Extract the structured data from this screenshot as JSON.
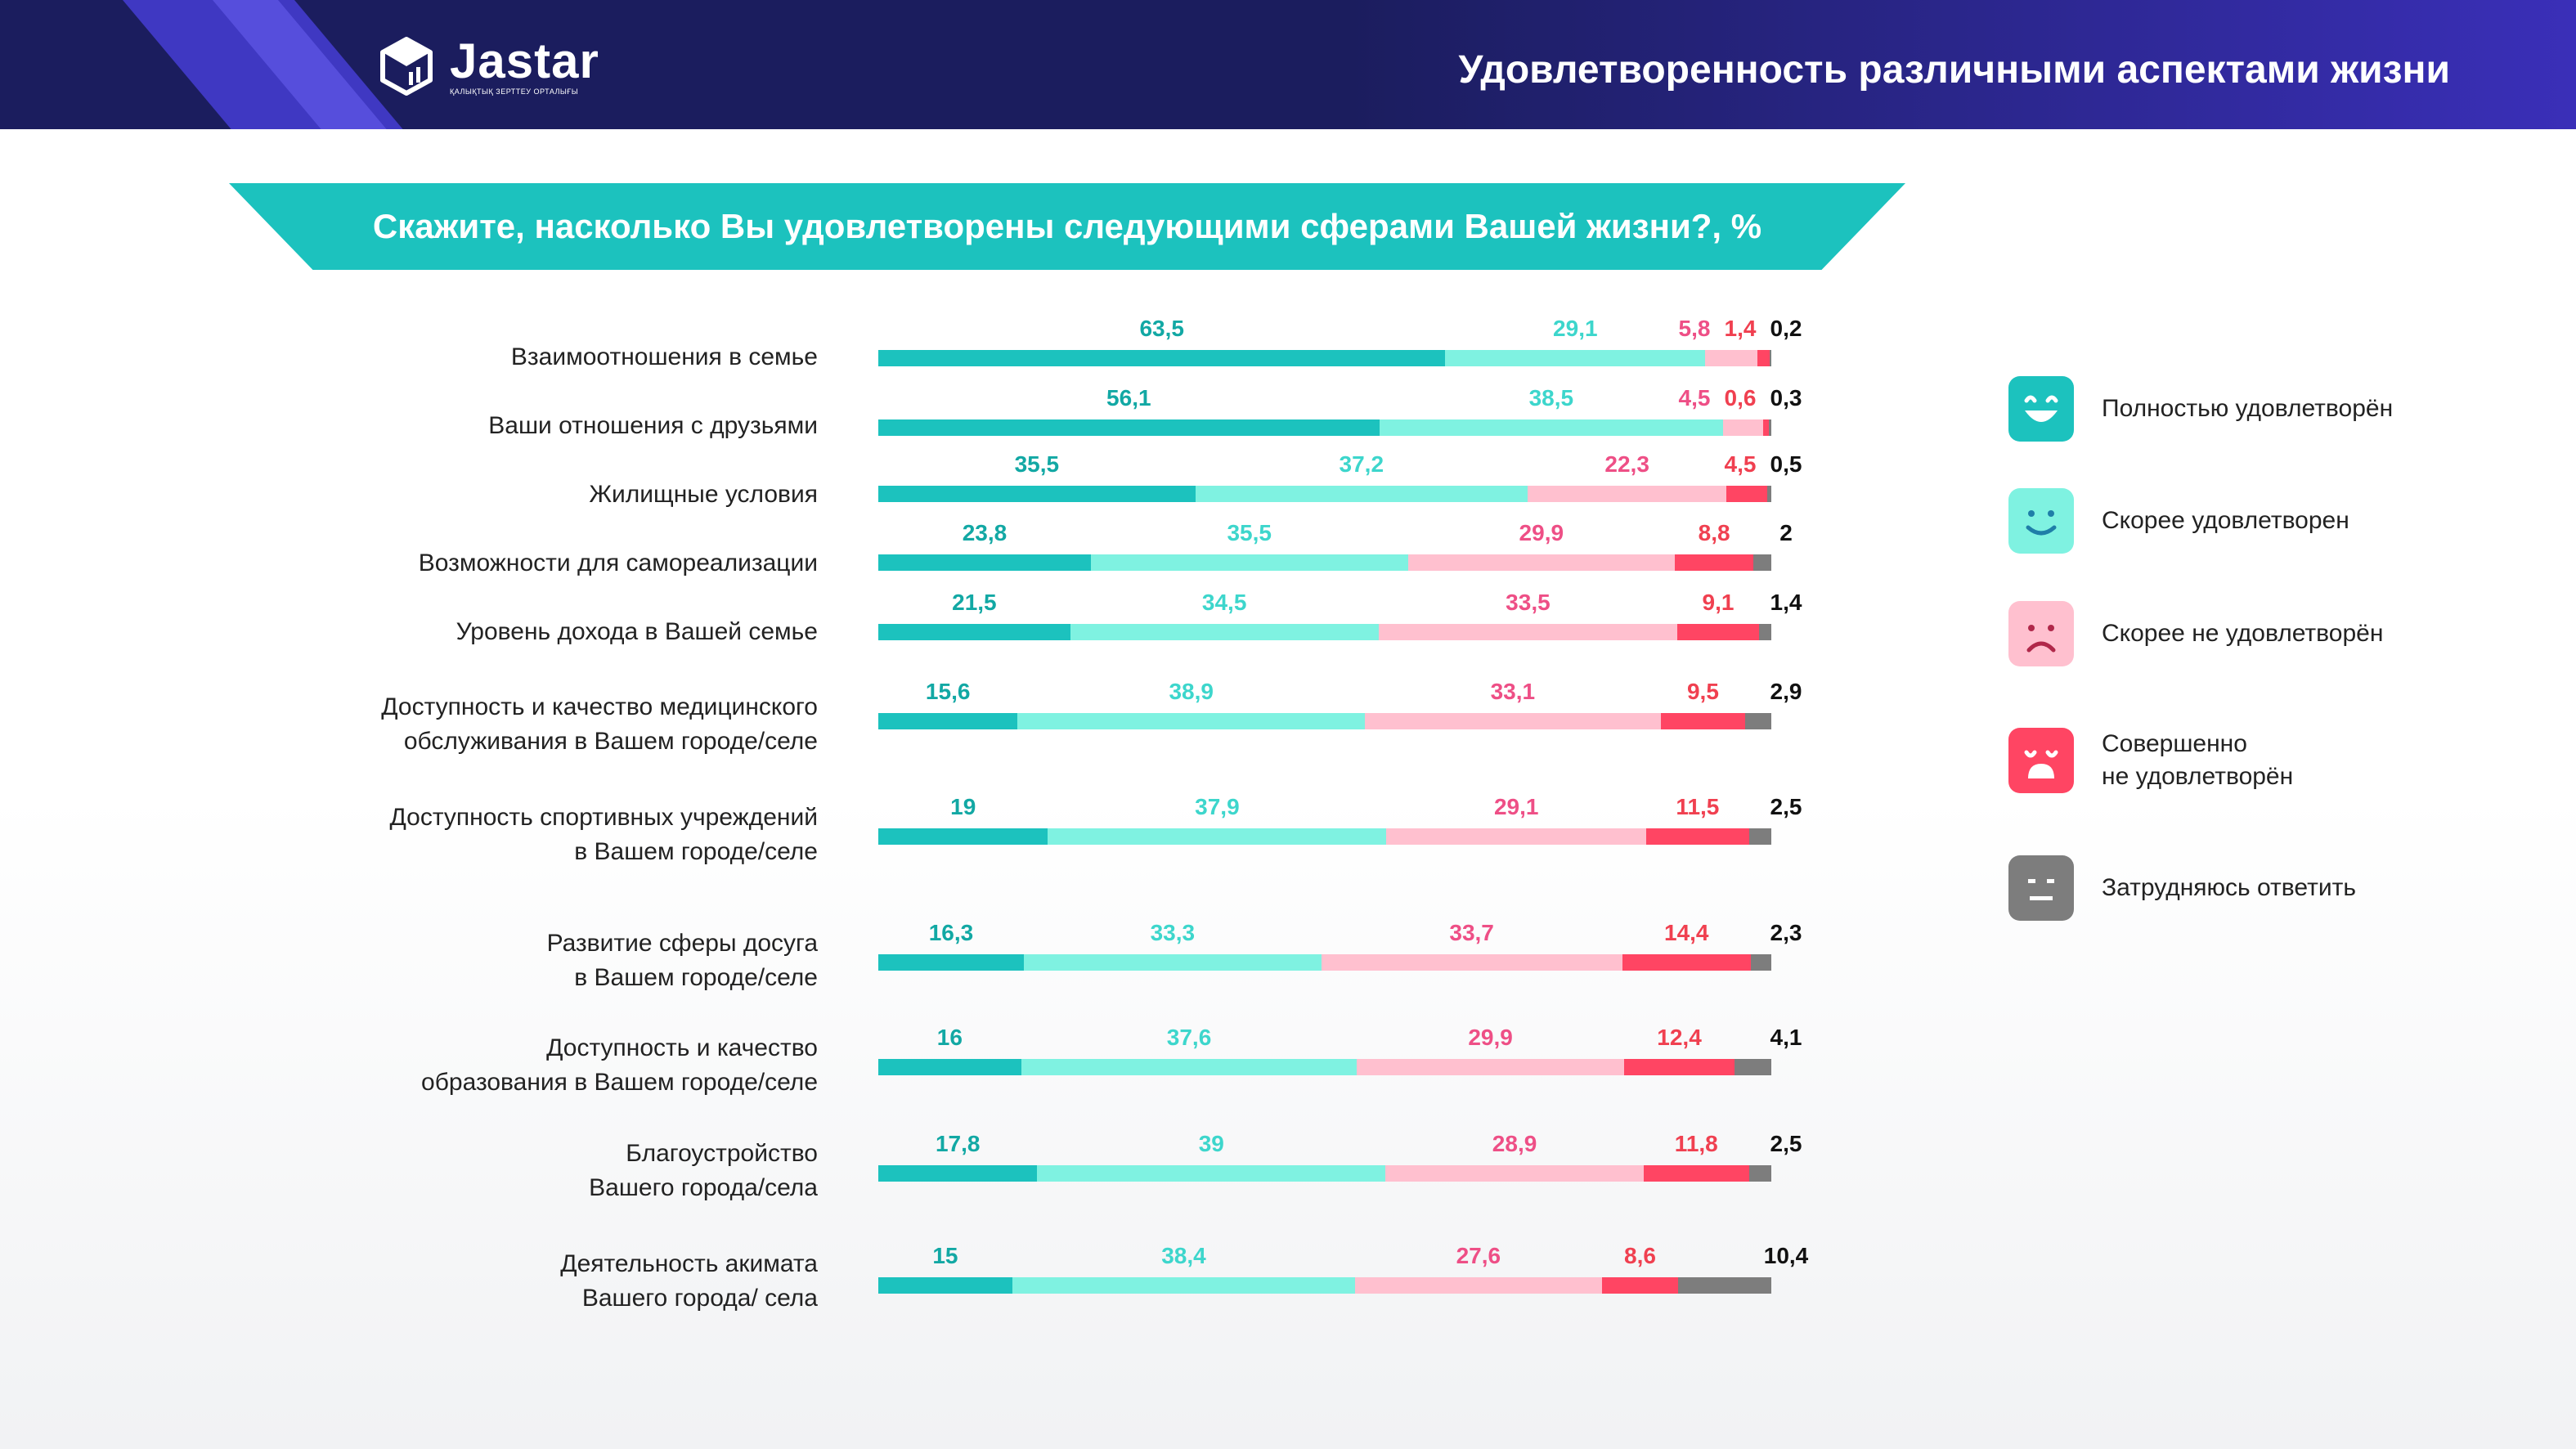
{
  "header": {
    "brand": "Jastar",
    "brand_sub": "ҚАЛЫҚТЫҚ ЗЕРТТЕУ ОРТАЛЫҒЫ",
    "title": "Удовлетворенность различными аспектами жизни"
  },
  "question": "Скажите, насколько Вы удовлетворены следующими сферами Вашей жизни?, %",
  "colors": {
    "full": "#1cc2be",
    "rather": "#7ff2e1",
    "rather_not": "#ffc0cf",
    "not": "#ff4563",
    "hard": "#7d7d7d",
    "label_full": "#12a8a4",
    "label_rather": "#3dd6cc",
    "label_rather_not": "#ee4f86",
    "label_not": "#f04050",
    "label_hard": "#111111"
  },
  "legend": [
    {
      "key": "full",
      "icon": "big-smile-icon",
      "label": "Полностью удовлетворён"
    },
    {
      "key": "rather",
      "icon": "smile-icon",
      "label": "Скорее удовлетворен"
    },
    {
      "key": "rather_not",
      "icon": "frown-icon",
      "label": "Скорее не удовлетворён"
    },
    {
      "key": "not",
      "icon": "sad-open-mouth-icon",
      "label": "Совершенно\nне удовлетворён"
    },
    {
      "key": "hard",
      "icon": "neutral-face-icon",
      "label": "Затрудняюсь ответить"
    }
  ],
  "chart_data": {
    "type": "bar",
    "orientation": "horizontal",
    "stacked": true,
    "xlim": [
      0,
      100
    ],
    "categories": [
      "Взаимоотношения в семье",
      "Ваши отношения с друзьями",
      "Жилищные условия",
      "Возможности для самореализации",
      "Уровень дохода в Вашей семье",
      "Доступность и качество медицинского\nобслуживания в Вашем городе/селе",
      "Доступность спортивных учреждений\nв Вашем городе/селе",
      "Развитие сферы досуга\nв Вашем городе/селе",
      "Доступность и качество\nобразования в Вашем городе/селе",
      "Благоустройство\nВашего города/села",
      "Деятельность акимата\nВашего города/ села"
    ],
    "series": [
      {
        "name": "Полностью удовлетворён",
        "values": [
          63.5,
          56.1,
          35.5,
          23.8,
          21.5,
          15.6,
          19,
          16.3,
          16,
          17.8,
          15
        ],
        "labels": [
          "63,5",
          "56,1",
          "35,5",
          "23,8",
          "21,5",
          "15,6",
          "19",
          "16,3",
          "16",
          "17,8",
          "15"
        ]
      },
      {
        "name": "Скорее удовлетворен",
        "values": [
          29.1,
          38.5,
          37.2,
          35.5,
          34.5,
          38.9,
          37.9,
          33.3,
          37.6,
          39,
          38.4
        ],
        "labels": [
          "29,1",
          "38,5",
          "37,2",
          "35,5",
          "34,5",
          "38,9",
          "37,9",
          "33,3",
          "37,6",
          "39",
          "38,4"
        ]
      },
      {
        "name": "Скорее не удовлетворён",
        "values": [
          5.8,
          4.5,
          22.3,
          29.9,
          33.5,
          33.1,
          29.1,
          33.7,
          29.9,
          28.9,
          27.6
        ],
        "labels": [
          "5,8",
          "4,5",
          "22,3",
          "29,9",
          "33,5",
          "33,1",
          "29,1",
          "33,7",
          "29,9",
          "28,9",
          "27,6"
        ]
      },
      {
        "name": "Совершенно не удовлетворён",
        "values": [
          1.4,
          0.6,
          4.5,
          8.8,
          9.1,
          9.5,
          11.5,
          14.4,
          12.4,
          11.8,
          8.6
        ],
        "labels": [
          "1,4",
          "0,6",
          "4,5",
          "8,8",
          "9,1",
          "9,5",
          "11,5",
          "14,4",
          "12,4",
          "11,8",
          "8,6"
        ]
      },
      {
        "name": "Затрудняюсь ответить",
        "values": [
          0.2,
          0.3,
          0.5,
          2,
          1.4,
          2.9,
          2.5,
          2.3,
          4.1,
          2.5,
          10.4
        ],
        "labels": [
          "0,2",
          "0,3",
          "0,5",
          "2",
          "1,4",
          "2,9",
          "2,5",
          "2,3",
          "4,1",
          "2,5",
          "10,4"
        ]
      }
    ]
  }
}
